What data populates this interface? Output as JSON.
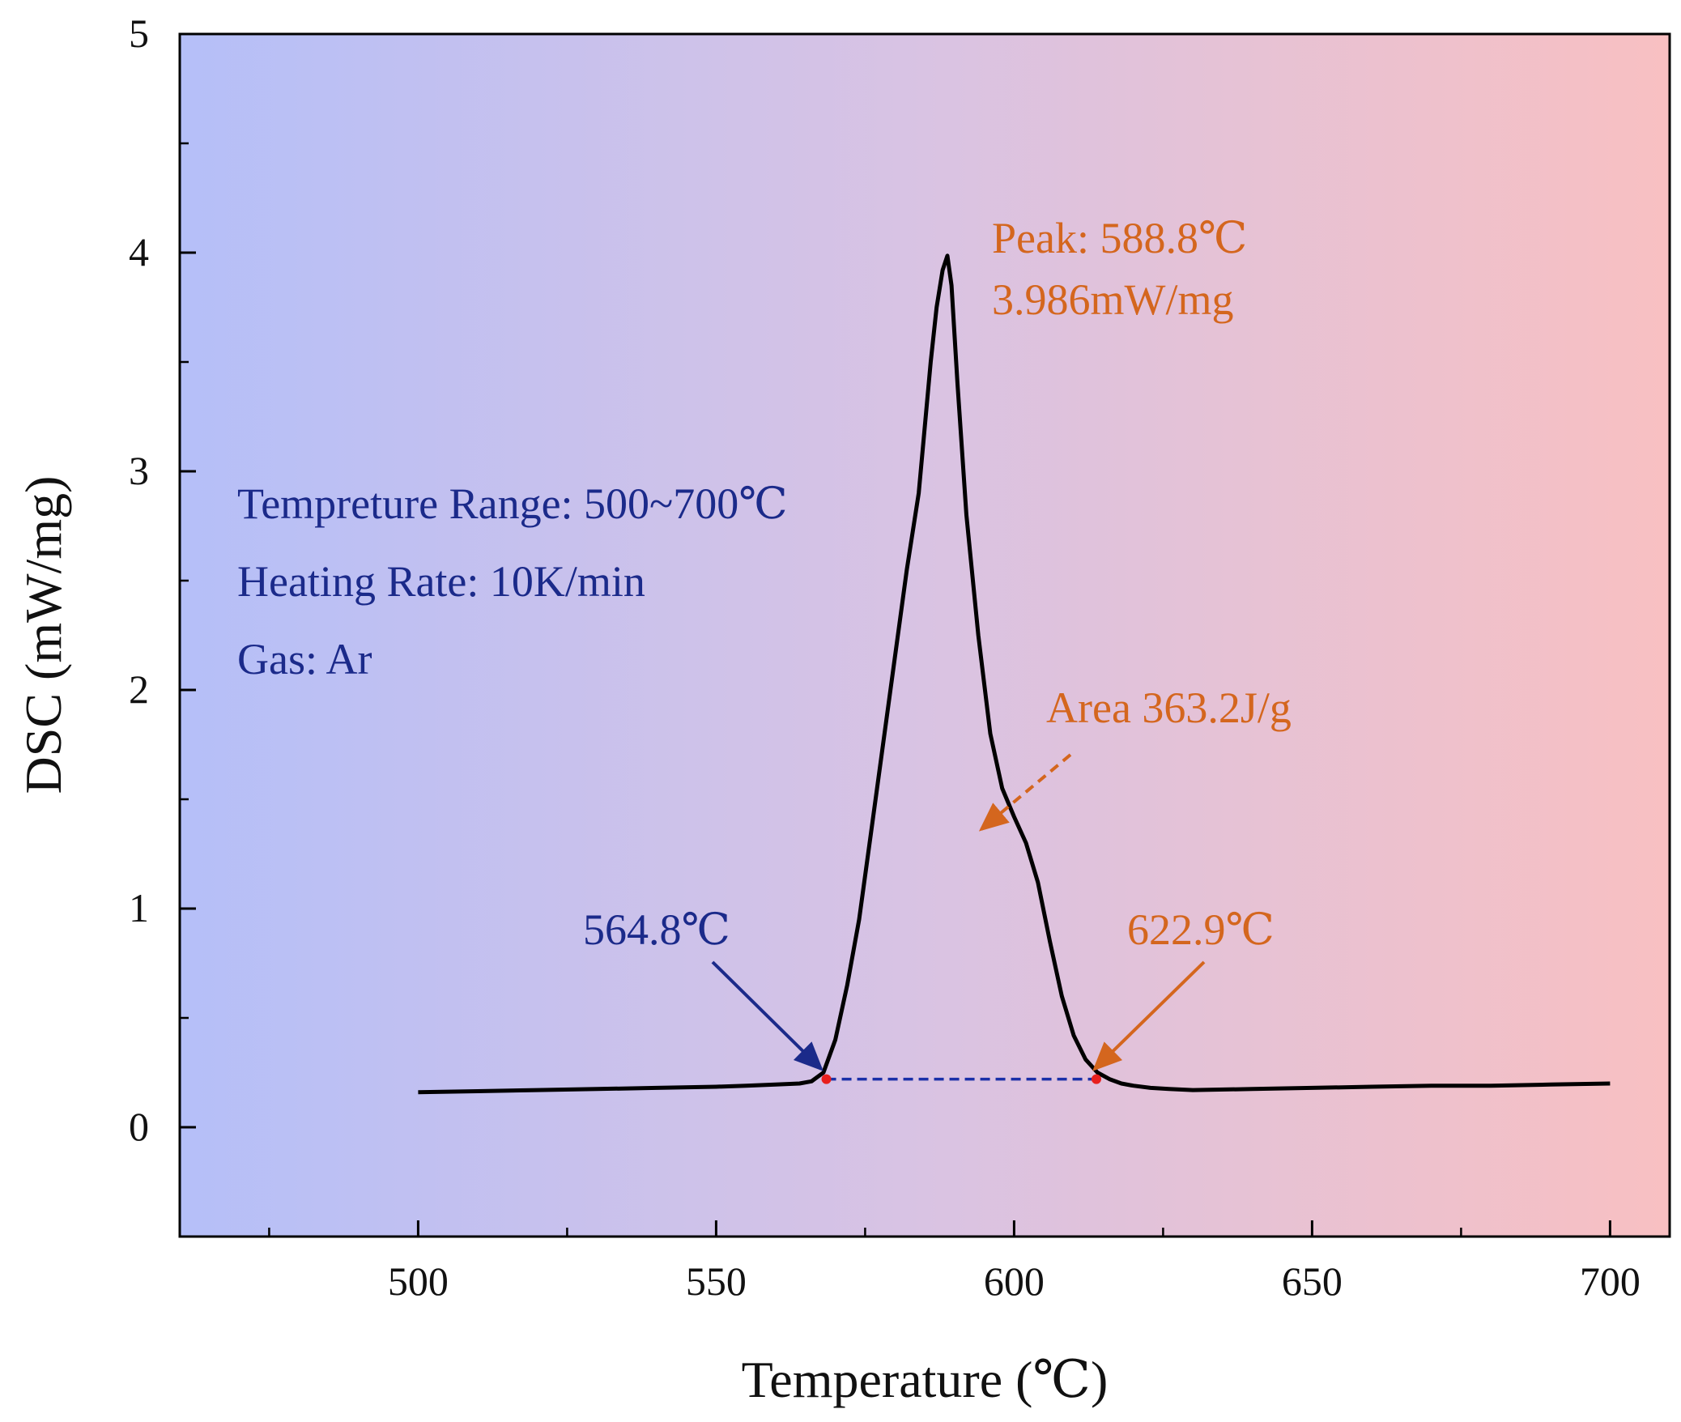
{
  "chart_data": {
    "type": "line",
    "title": "",
    "xlabel": "Temperature (℃)",
    "ylabel": "DSC (mW/mg)",
    "xlim": [
      460,
      710
    ],
    "ylim": [
      -0.5,
      5
    ],
    "x_ticks": [
      500,
      550,
      600,
      650,
      700
    ],
    "x_tick_labels": [
      "500",
      "550",
      "600",
      "650",
      "700"
    ],
    "x_minor_ticks": [
      475,
      525,
      575,
      625,
      675
    ],
    "y_ticks": [
      0,
      1,
      2,
      3,
      4,
      5
    ],
    "y_tick_labels": [
      "0",
      "1",
      "2",
      "3",
      "4",
      "5"
    ],
    "y_minor_ticks": [
      -0.5,
      0.5,
      1.5,
      2.5,
      3.5,
      4.5
    ],
    "grid": false,
    "colors": {
      "background_left": "#b5bff8",
      "background_mid": "#d9c3e3",
      "background_right": "#f8c0c2",
      "curve": "#000000",
      "baseline": "#1a2fa8",
      "marker": "#e8201e",
      "blue_text": "#1b2a8a",
      "orange_text": "#d4661e"
    },
    "series": [
      {
        "name": "DSC",
        "x": [
          500,
          510,
          520,
          530,
          540,
          550,
          555,
          560,
          564,
          566,
          568,
          570,
          572,
          574,
          576,
          578,
          580,
          582,
          584,
          586,
          587,
          588,
          588.8,
          589.5,
          590.5,
          592,
          594,
          596,
          598,
          600,
          602,
          604,
          606,
          608,
          610,
          612,
          614,
          616,
          618,
          620,
          622.9,
          626,
          630,
          640,
          650,
          660,
          670,
          680,
          690,
          700
        ],
        "y": [
          0.16,
          0.165,
          0.17,
          0.175,
          0.18,
          0.185,
          0.19,
          0.195,
          0.2,
          0.21,
          0.25,
          0.4,
          0.65,
          0.95,
          1.35,
          1.75,
          2.15,
          2.55,
          2.9,
          3.5,
          3.75,
          3.92,
          3.986,
          3.85,
          3.4,
          2.8,
          2.25,
          1.8,
          1.55,
          1.42,
          1.3,
          1.12,
          0.85,
          0.6,
          0.42,
          0.31,
          0.25,
          0.22,
          0.2,
          0.19,
          0.18,
          0.175,
          0.17,
          0.175,
          0.18,
          0.185,
          0.19,
          0.19,
          0.195,
          0.2
        ]
      }
    ],
    "baseline": {
      "x": [
        568.5,
        613.8
      ],
      "y": [
        0.22,
        0.22
      ],
      "style": "dashed"
    },
    "markers": [
      {
        "x": 568.5,
        "y": 0.22
      },
      {
        "x": 613.8,
        "y": 0.22
      }
    ],
    "annotations": [
      {
        "id": "peak-temp",
        "text": "Peak: 588.8℃"
      },
      {
        "id": "peak-value",
        "text": "3.986mW/mg"
      },
      {
        "id": "area",
        "text": "Area 363.2J/g"
      },
      {
        "id": "onset",
        "text": "564.8℃"
      },
      {
        "id": "endset",
        "text": "622.9℃"
      },
      {
        "id": "info-range",
        "text": "Tempreture Range: 500~700℃"
      },
      {
        "id": "info-rate",
        "text": "Heating Rate: 10K/min"
      },
      {
        "id": "info-gas",
        "text": "Gas: Ar"
      }
    ]
  }
}
